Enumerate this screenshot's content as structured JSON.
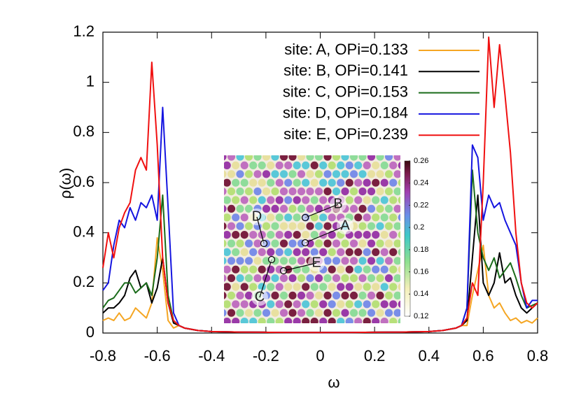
{
  "chart_data": {
    "type": "line",
    "xlabel": "ω",
    "ylabel": "ρ(ω)",
    "xlim": [
      -0.8,
      0.8
    ],
    "ylim": [
      0,
      1.2
    ],
    "xticks": [
      -0.8,
      -0.6,
      -0.4,
      -0.2,
      0,
      0.2,
      0.4,
      0.6,
      0.8
    ],
    "yticks": [
      0,
      0.2,
      0.4,
      0.6,
      0.8,
      1,
      1.2
    ],
    "x": [
      -0.8,
      -0.78,
      -0.76,
      -0.74,
      -0.72,
      -0.7,
      -0.68,
      -0.66,
      -0.64,
      -0.62,
      -0.6,
      -0.58,
      -0.56,
      -0.54,
      -0.52,
      -0.5,
      -0.45,
      -0.4,
      -0.3,
      -0.2,
      -0.1,
      0,
      0.1,
      0.2,
      0.3,
      0.4,
      0.45,
      0.5,
      0.52,
      0.54,
      0.56,
      0.58,
      0.6,
      0.62,
      0.64,
      0.66,
      0.68,
      0.7,
      0.72,
      0.74,
      0.76,
      0.78,
      0.8
    ],
    "series": [
      {
        "name": "site: A, OPi=0.133",
        "color": "#f5a623",
        "values": [
          0.05,
          0.06,
          0.05,
          0.08,
          0.05,
          0.06,
          0.1,
          0.08,
          0.06,
          0.12,
          0.38,
          0.25,
          0.05,
          0.02,
          0.03,
          0.02,
          0.01,
          0.006,
          0.004,
          0.003,
          0.002,
          0.002,
          0.002,
          0.003,
          0.004,
          0.006,
          0.01,
          0.02,
          0.03,
          0.03,
          0.15,
          0.25,
          0.35,
          0.15,
          0.1,
          0.12,
          0.08,
          0.05,
          0.06,
          0.04,
          0.05,
          0.04,
          0.06
        ]
      },
      {
        "name": "site: B, OPi=0.141",
        "color": "#000000",
        "values": [
          0.08,
          0.1,
          0.1,
          0.12,
          0.15,
          0.22,
          0.25,
          0.18,
          0.2,
          0.12,
          0.18,
          0.3,
          0.12,
          0.04,
          0.03,
          0.02,
          0.01,
          0.006,
          0.004,
          0.003,
          0.002,
          0.002,
          0.002,
          0.003,
          0.004,
          0.006,
          0.01,
          0.02,
          0.03,
          0.05,
          0.3,
          0.55,
          0.2,
          0.15,
          0.2,
          0.32,
          0.2,
          0.22,
          0.15,
          0.1,
          0.08,
          0.1,
          0.12
        ]
      },
      {
        "name": "site: C, OPi=0.153",
        "color": "#1a6b1a",
        "values": [
          0.1,
          0.13,
          0.14,
          0.17,
          0.2,
          0.2,
          0.16,
          0.18,
          0.2,
          0.15,
          0.3,
          0.55,
          0.15,
          0.05,
          0.03,
          0.02,
          0.01,
          0.006,
          0.004,
          0.003,
          0.002,
          0.002,
          0.002,
          0.003,
          0.004,
          0.006,
          0.01,
          0.02,
          0.03,
          0.1,
          0.65,
          0.4,
          0.3,
          0.25,
          0.3,
          0.22,
          0.25,
          0.28,
          0.22,
          0.15,
          0.1,
          0.11,
          0.12
        ]
      },
      {
        "name": "site: D, OPi=0.184",
        "color": "#1515e0",
        "values": [
          0.17,
          0.2,
          0.35,
          0.45,
          0.42,
          0.5,
          0.45,
          0.52,
          0.5,
          0.55,
          0.45,
          0.9,
          0.5,
          0.08,
          0.03,
          0.02,
          0.01,
          0.006,
          0.004,
          0.003,
          0.002,
          0.002,
          0.002,
          0.003,
          0.004,
          0.006,
          0.01,
          0.02,
          0.03,
          0.1,
          0.75,
          0.7,
          0.45,
          0.55,
          0.5,
          0.52,
          0.45,
          0.4,
          0.35,
          0.2,
          0.1,
          0.13,
          0.13
        ]
      },
      {
        "name": "site: E, OPi=0.239",
        "color": "#f01010",
        "values": [
          0.26,
          0.4,
          0.3,
          0.42,
          0.48,
          0.52,
          0.65,
          0.7,
          0.65,
          1.08,
          0.75,
          0.3,
          0.12,
          0.05,
          0.03,
          0.02,
          0.01,
          0.006,
          0.004,
          0.003,
          0.002,
          0.002,
          0.002,
          0.003,
          0.004,
          0.006,
          0.01,
          0.02,
          0.03,
          0.06,
          0.2,
          0.15,
          0.6,
          1.18,
          0.9,
          1.15,
          0.95,
          0.72,
          0.4,
          0.2,
          0.12,
          0.1,
          0.12
        ]
      }
    ],
    "inset": {
      "labels": [
        "A",
        "B",
        "C",
        "D",
        "E"
      ],
      "colorbar_lim": [
        0.12,
        0.26
      ],
      "colorbar_ticks": [
        0.12,
        0.14,
        0.16,
        0.18,
        0.2,
        0.22,
        0.24,
        0.26
      ]
    }
  }
}
